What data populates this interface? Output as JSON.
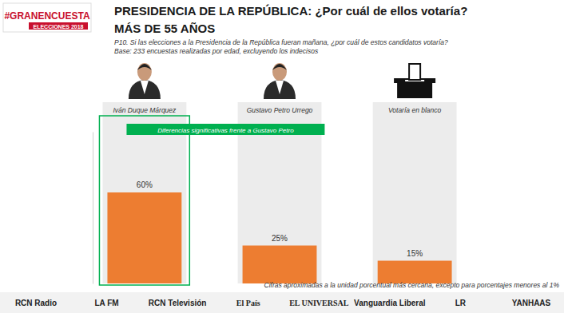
{
  "chart_data": {
    "type": "bar",
    "logo": [
      "#GRANENCUESTA",
      "ELECCIONES 2018"
    ],
    "title": "PRESIDENCIA DE LA REPÚBLICA: ¿Por cuál de ellos votaría?",
    "subtitle": "MÁS DE 55 AÑOS",
    "question": "P10. Si las elecciones a la Presidencia de la República fueran mañana, ¿por cuál de estos candidatos votaría?",
    "base": "Base: 233 encuestas realizadas por edad, excluyendo los indecisos",
    "annotation": "Diferencias significativas frente a Gustavo Petro",
    "footnote": "Cifras aproximadas a la unidad porcentual más cercana, excepto para porcentajes menores al 1%",
    "sponsors": [
      "RCN Radio",
      "LA FM",
      "RCN Televisión",
      "El País",
      "EL UNIVERSAL",
      "Vanguardia Liberal",
      "LR",
      "YANHAAS"
    ],
    "categories": [
      "Iván Duque Márquez",
      "Gustavo Petro Urrego",
      "Votaría en blanco"
    ],
    "values": [
      60,
      25,
      15
    ],
    "value_labels": [
      "60%",
      "25%",
      "15%"
    ],
    "color": "#ED7D31",
    "ylim": [
      0,
      100
    ],
    "data_labels": true,
    "tick_labels": false,
    "grid": false
  }
}
